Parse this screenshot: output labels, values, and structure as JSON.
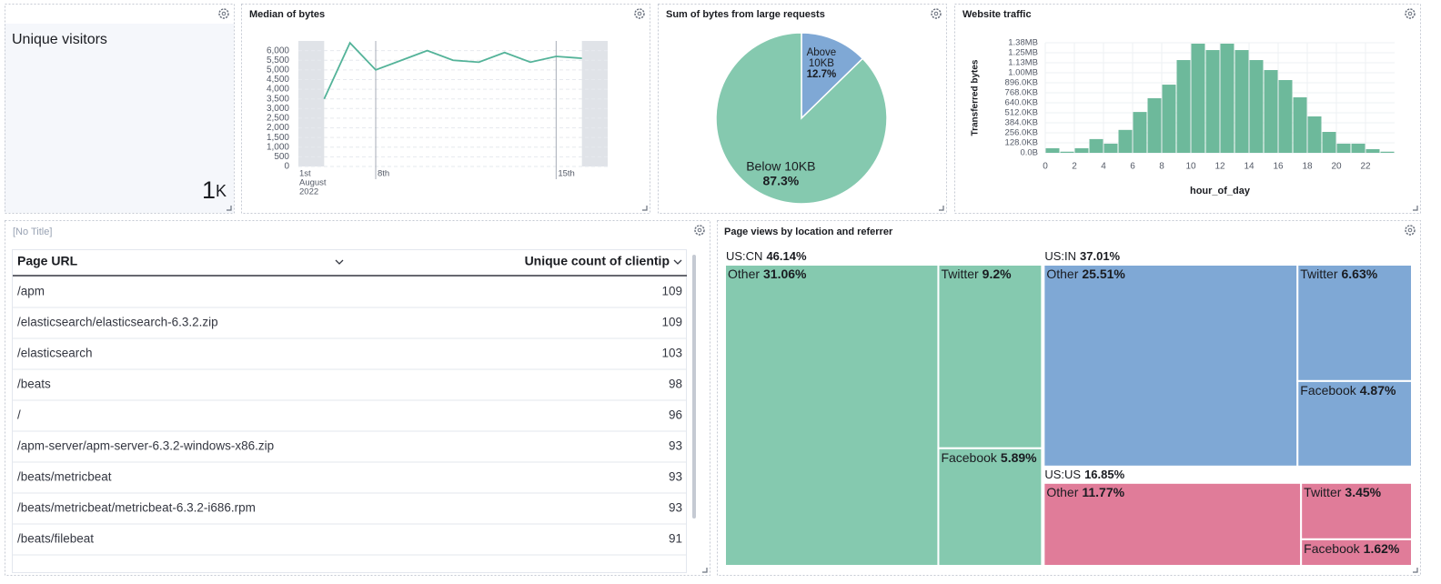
{
  "metric": {
    "label": "Unique visitors",
    "value": 1,
    "suffix": "K"
  },
  "chart_data": [
    {
      "type": "line",
      "title": "Median of bytes",
      "x": [
        6,
        7,
        8,
        9,
        10,
        11,
        12,
        13,
        14,
        15,
        16
      ],
      "values": [
        3500,
        6400,
        5000,
        5500,
        6000,
        5500,
        5400,
        5900,
        5400,
        5700,
        5600
      ],
      "color": "#54b399",
      "x_start_label": [
        "1st",
        "August",
        "2022"
      ],
      "xlim": [
        5,
        17
      ],
      "xticks": [
        {
          "value": 8,
          "label": "8th"
        },
        {
          "value": 15,
          "label": "15th"
        }
      ],
      "ylim": [
        0,
        6500
      ],
      "yticks": [
        0,
        500,
        {
          "value": 1000,
          "label": "1,000"
        },
        {
          "value": 1500,
          "label": "1,500"
        },
        {
          "value": 2000,
          "label": "2,000"
        },
        {
          "value": 2500,
          "label": "2,500"
        },
        {
          "value": 3000,
          "label": "3,000"
        },
        {
          "value": 3500,
          "label": "3,500"
        },
        {
          "value": 4000,
          "label": "4,000"
        },
        {
          "value": 4500,
          "label": "4,500"
        },
        {
          "value": 5000,
          "label": "5,000"
        },
        {
          "value": 5500,
          "label": "5,500"
        },
        {
          "value": 6000,
          "label": "6,000"
        }
      ],
      "grid": true
    },
    {
      "type": "pie",
      "title": "Sum of bytes from large requests",
      "categories": [
        "Above 10KB",
        "Below 10KB"
      ],
      "values": [
        12.7,
        87.3
      ],
      "value_labels": [
        "12.7%",
        "87.3%"
      ],
      "colors": [
        "#7fa8d5",
        "#85c9af"
      ]
    },
    {
      "type": "histogram",
      "title": "Website traffic",
      "bins": [
        0,
        1,
        2,
        3,
        4,
        5,
        6,
        7,
        8,
        9,
        10,
        11,
        12,
        13,
        14,
        15,
        16,
        17,
        18,
        19,
        20,
        21,
        22,
        23,
        24
      ],
      "values": [
        60000,
        15000,
        60000,
        180000,
        120000,
        300000,
        535000,
        715000,
        893000,
        1215000,
        1430000,
        1346000,
        1430000,
        1346000,
        1215000,
        1084000,
        953000,
        727000,
        477000,
        274000,
        120000,
        120000,
        48000,
        15000
      ],
      "color": "#6db99b",
      "xlabel": "hour_of_day",
      "ylabel": "Transferred bytes",
      "xlim": [
        0,
        24
      ],
      "xticks": [
        0,
        2,
        4,
        6,
        8,
        10,
        12,
        14,
        16,
        18,
        20,
        22
      ],
      "ylim": [
        0,
        1441792
      ],
      "yticks": [
        {
          "value": 0,
          "label": "0.0B"
        },
        {
          "value": 131072,
          "label": "128.0KB"
        },
        {
          "value": 262144,
          "label": "256.0KB"
        },
        {
          "value": 393216,
          "label": "384.0KB"
        },
        {
          "value": 524288,
          "label": "512.0KB"
        },
        {
          "value": 655360,
          "label": "640.0KB"
        },
        {
          "value": 786432,
          "label": "768.0KB"
        },
        {
          "value": 917504,
          "label": "896.0KB"
        },
        {
          "value": 1048576,
          "label": "1.00MB"
        },
        {
          "value": 1179648,
          "label": "1.13MB"
        },
        {
          "value": 1310720,
          "label": "1.25MB"
        },
        {
          "value": 1441792,
          "label": "1.38MB"
        }
      ],
      "grid": true
    },
    {
      "type": "treemap",
      "title": "Page views by location and referrer",
      "groups": [
        {
          "name": "US:CN",
          "value": 46.14,
          "value_label": "46.14%",
          "color": "#85c9af",
          "children": [
            {
              "name": "Other",
              "value": 31.06,
              "value_label": "31.06%"
            },
            {
              "name": "Twitter",
              "value": 9.2,
              "value_label": "9.2%"
            },
            {
              "name": "Facebook",
              "value": 5.89,
              "value_label": "5.89%"
            }
          ]
        },
        {
          "name": "US:IN",
          "value": 37.01,
          "value_label": "37.01%",
          "color": "#7fa8d5",
          "children": [
            {
              "name": "Other",
              "value": 25.51,
              "value_label": "25.51%"
            },
            {
              "name": "Twitter",
              "value": 6.63,
              "value_label": "6.63%"
            },
            {
              "name": "Facebook",
              "value": 4.87,
              "value_label": "4.87%"
            }
          ]
        },
        {
          "name": "US:US",
          "value": 16.85,
          "value_label": "16.85%",
          "color": "#e07c99",
          "children": [
            {
              "name": "Other",
              "value": 11.77,
              "value_label": "11.77%"
            },
            {
              "name": "Twitter",
              "value": 3.45,
              "value_label": "3.45%"
            },
            {
              "name": "Facebook",
              "value": 1.62,
              "value_label": "1.62%"
            }
          ]
        }
      ]
    }
  ],
  "table": {
    "title": "[No Title]",
    "columns": [
      "Page URL",
      "Unique count of clientip"
    ],
    "rows": [
      [
        "/apm",
        109
      ],
      [
        "/elasticsearch/elasticsearch-6.3.2.zip",
        109
      ],
      [
        "/elasticsearch",
        103
      ],
      [
        "/beats",
        98
      ],
      [
        "/",
        96
      ],
      [
        "/apm-server/apm-server-6.3.2-windows-x86.zip",
        93
      ],
      [
        "/beats/metricbeat",
        93
      ],
      [
        "/beats/metricbeat/metricbeat-6.3.2-i686.rpm",
        93
      ],
      [
        "/beats/filebeat",
        91
      ]
    ]
  }
}
